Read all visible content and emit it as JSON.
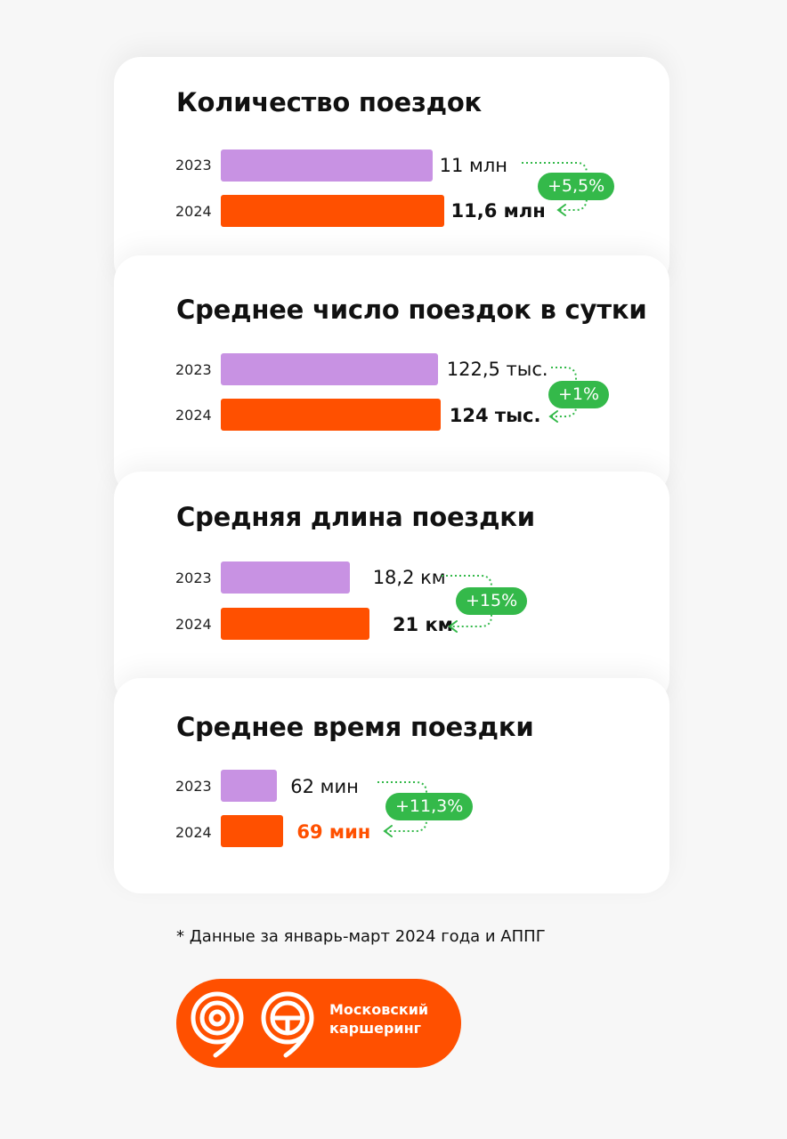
{
  "colors": {
    "bar_2023": "#c892e3",
    "bar_2024": "#ff5000",
    "badge": "#34b94a"
  },
  "chart_data": [
    {
      "type": "bar",
      "title": "Количество поездок",
      "categories": [
        "2023",
        "2024"
      ],
      "values": [
        11,
        11.6
      ],
      "value_labels": [
        "11 млн",
        "11,6 млн"
      ],
      "change": "+5,5%"
    },
    {
      "type": "bar",
      "title": "Среднее число поездок в сутки",
      "categories": [
        "2023",
        "2024"
      ],
      "values": [
        122.5,
        124
      ],
      "value_labels": [
        "122,5 тыс.",
        "124 тыс."
      ],
      "change": "+1%"
    },
    {
      "type": "bar",
      "title": "Средняя длина поездки",
      "categories": [
        "2023",
        "2024"
      ],
      "values": [
        18.2,
        21
      ],
      "value_labels": [
        "18,2 км",
        "21 км"
      ],
      "change": "+15%"
    },
    {
      "type": "bar",
      "title": "Среднее время поездки",
      "categories": [
        "2023",
        "2024"
      ],
      "values": [
        62,
        69
      ],
      "value_labels": [
        "62 мин",
        "69 мин"
      ],
      "change": "+11,3%"
    }
  ],
  "footnote": "* Данные за январь-март 2024 года и АППГ",
  "logo": {
    "line1": "Московский",
    "line2": "каршеринг"
  }
}
